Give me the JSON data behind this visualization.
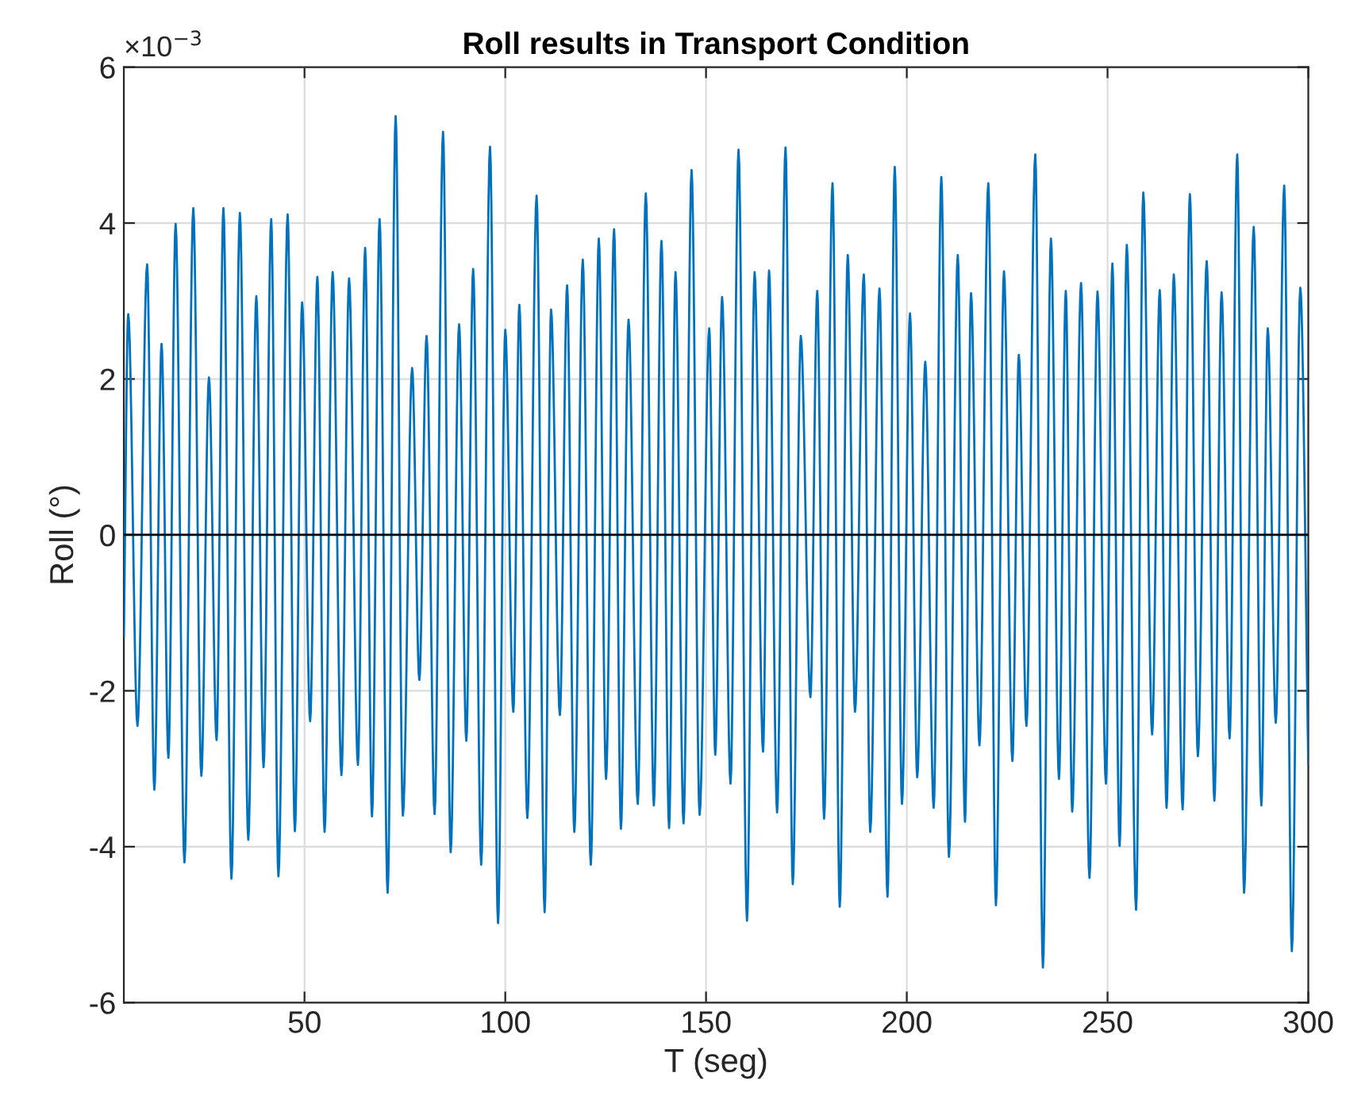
{
  "chart_data": {
    "type": "line",
    "title": "Roll results in Transport Condition",
    "xlabel": "T (seg)",
    "ylabel": "Roll (°)",
    "annotations": [
      "×10$^{−3}$"
    ],
    "xlim": [
      5,
      300
    ],
    "xticks": [
      50,
      100,
      150,
      200,
      250,
      300
    ],
    "ylim": [
      -6,
      6
    ],
    "yticks": [
      -6,
      -4,
      -2,
      0,
      2,
      4,
      6
    ],
    "grid": true,
    "line_style": "solid",
    "marker": "none",
    "ref_lines": [
      {
        "axis": "y",
        "value": 0,
        "color": "#000000"
      }
    ],
    "series": [
      {
        "color": "#0072bd",
        "x": [
          5,
          6.1,
          8.4,
          10.8,
          12.6,
          14.4,
          16.1,
          17.9,
          20.1,
          22.3,
          24.3,
          26.2,
          28.1,
          29.8,
          31.8,
          33.9,
          36.0,
          38.0,
          39.8,
          41.7,
          43.5,
          45.8,
          47.6,
          49.4,
          51.4,
          53.2,
          55.0,
          57.0,
          59.2,
          61.1,
          63.3,
          65.1,
          66.8,
          68.7,
          70.7,
          72.7,
          74.5,
          76.8,
          78.6,
          80.4,
          82.4,
          84.5,
          86.4,
          88.5,
          90.3,
          92.0,
          94.0,
          96.2,
          98.2,
          100.0,
          102.0,
          103.5,
          105.5,
          107.8,
          109.8,
          111.4,
          113.6,
          115.4,
          117.2,
          119.3,
          121.3,
          123.3,
          125.1,
          127.1,
          128.8,
          130.7,
          133.0,
          135.0,
          137.0,
          138.9,
          140.8,
          142.4,
          144.4,
          146.4,
          148.4,
          150.8,
          152.3,
          154.0,
          156.1,
          158.1,
          160.2,
          162.1,
          164.2,
          165.7,
          167.7,
          169.8,
          171.6,
          173.6,
          176.0,
          177.7,
          179.4,
          181.5,
          183.3,
          185.3,
          187.1,
          189.3,
          190.9,
          193.2,
          195.2,
          197.0,
          198.8,
          200.8,
          202.6,
          204.6,
          206.7,
          208.6,
          210.5,
          212.7,
          214.5,
          216.0,
          218.1,
          220.3,
          222.2,
          224.2,
          226.3,
          227.9,
          229.8,
          232.0,
          233.9,
          235.9,
          237.9,
          239.6,
          241.2,
          243.4,
          245.5,
          247.5,
          249.6,
          251.2,
          253.0,
          254.8,
          257.1,
          258.9,
          261.1,
          263.0,
          264.7,
          266.5,
          268.7,
          270.5,
          272.5,
          274.7,
          276.6,
          278.4,
          280.4,
          282.3,
          284.0,
          286.4,
          288.3,
          289.9,
          291.9,
          294.0,
          295.9,
          298.0,
          300
        ],
        "values": [
          -1.3,
          2.83,
          -2.45,
          3.47,
          -3.27,
          2.45,
          -2.86,
          3.99,
          -4.2,
          4.19,
          -3.09,
          2.02,
          -2.63,
          4.19,
          -4.41,
          4.13,
          -3.91,
          3.06,
          -2.98,
          4.05,
          -4.38,
          4.11,
          -3.8,
          2.98,
          -2.39,
          3.31,
          -3.81,
          3.37,
          -3.08,
          3.29,
          -2.95,
          3.68,
          -3.61,
          4.05,
          -4.59,
          5.37,
          -3.6,
          2.14,
          -1.86,
          2.55,
          -3.58,
          5.17,
          -4.07,
          2.7,
          -2.64,
          3.41,
          -4.23,
          4.98,
          -4.98,
          2.63,
          -2.27,
          2.95,
          -3.63,
          4.35,
          -4.84,
          2.89,
          -2.31,
          3.2,
          -3.81,
          3.53,
          -4.23,
          3.8,
          -3.13,
          3.92,
          -3.77,
          2.76,
          -3.45,
          4.38,
          -3.47,
          3.77,
          -3.76,
          3.37,
          -3.7,
          4.68,
          -3.59,
          2.65,
          -2.82,
          3.05,
          -3.19,
          4.94,
          -4.95,
          3.37,
          -2.78,
          3.39,
          -3.56,
          4.97,
          -4.48,
          2.55,
          -2.08,
          3.13,
          -3.64,
          4.51,
          -4.77,
          3.59,
          -2.27,
          3.34,
          -3.81,
          3.16,
          -4.64,
          4.72,
          -3.45,
          2.84,
          -3.11,
          2.22,
          -3.5,
          4.59,
          -4.13,
          3.59,
          -3.68,
          3.1,
          -2.7,
          4.51,
          -4.75,
          3.38,
          -2.9,
          2.31,
          -2.45,
          4.88,
          -5.55,
          3.8,
          -3.13,
          3.13,
          -3.55,
          3.23,
          -4.4,
          3.12,
          -3.19,
          3.48,
          -3.99,
          3.72,
          -4.81,
          4.39,
          -2.56,
          3.14,
          -3.5,
          3.34,
          -3.52,
          4.37,
          -2.84,
          3.51,
          -3.41,
          3.11,
          -2.61,
          4.88,
          -4.59,
          3.95,
          -3.47,
          2.65,
          -2.41,
          4.48,
          -5.34,
          3.17,
          -2.94
        ]
      }
    ]
  }
}
